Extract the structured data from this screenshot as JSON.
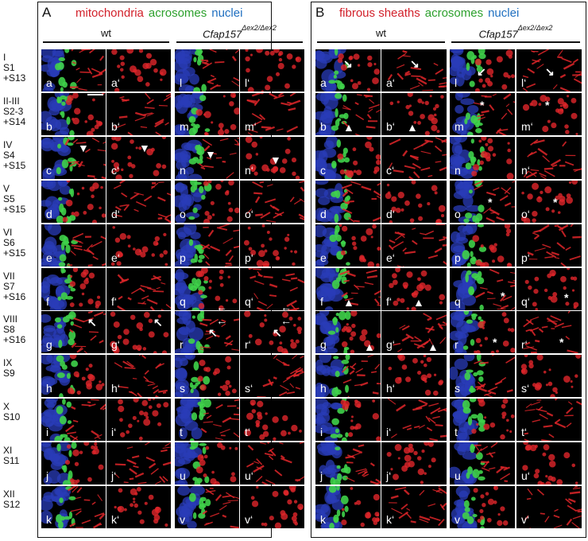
{
  "stages": [
    "I\nS1\n+S13",
    "II-III\nS2-3\n+S14",
    "IV\nS4\n+S15",
    "V\nS5\n+S15",
    "VI\nS6\n+S15",
    "VII\nS7\n+S16",
    "VIII\nS8\n+S16",
    "IX\nS9",
    "X\nS10",
    "XI\nS11",
    "XII\nS12"
  ],
  "panels": [
    {
      "letter": "A",
      "legend": [
        {
          "text": "mitochondria",
          "color": "#d2202a"
        },
        {
          "text": "acrosomes",
          "color": "#2ca02c"
        },
        {
          "text": "nuclei",
          "color": "#1f6fc0"
        }
      ],
      "genotypes": [
        {
          "label": "wt",
          "sup": ""
        },
        {
          "label": "Cfap157",
          "sup": "Δex2/Δex2"
        }
      ],
      "labels_wt": [
        "a",
        "b",
        "c",
        "d",
        "e",
        "f",
        "g",
        "h",
        "i",
        "j",
        "k"
      ],
      "labels_wt_prime": [
        "a‘",
        "b‘",
        "c‘",
        "d‘",
        "e‘",
        "f‘",
        "g‘",
        "h‘",
        "i‘",
        "j‘",
        "k‘"
      ],
      "labels_ko": [
        "l",
        "m",
        "n",
        "o",
        "p",
        "q",
        "r",
        "s",
        "t",
        "u",
        "v"
      ],
      "labels_ko_prime": [
        "l‘",
        "m‘",
        "n‘",
        "o‘",
        "p‘",
        "q‘",
        "r‘",
        "s‘",
        "t‘",
        "u‘",
        "v‘"
      ]
    },
    {
      "letter": "B",
      "legend": [
        {
          "text": "fibrous sheaths",
          "color": "#d2202a"
        },
        {
          "text": "acrosomes",
          "color": "#2ca02c"
        },
        {
          "text": "nuclei",
          "color": "#1f6fc0"
        }
      ],
      "genotypes": [
        {
          "label": "wt",
          "sup": ""
        },
        {
          "label": "Cfap157",
          "sup": "Δex2/Δex2"
        }
      ],
      "labels_wt": [
        "a",
        "b",
        "c",
        "d",
        "e",
        "f",
        "g",
        "h",
        "i",
        "j",
        "k"
      ],
      "labels_wt_prime": [
        "a‘",
        "b‘",
        "c‘",
        "d‘",
        "e‘",
        "f‘",
        "g‘",
        "h‘",
        "i‘",
        "j‘",
        "k‘"
      ],
      "labels_ko": [
        "l",
        "m",
        "n",
        "o",
        "p",
        "q",
        "r",
        "s",
        "t",
        "u",
        "v"
      ],
      "labels_ko_prime": [
        "l‘",
        "m‘",
        "n‘",
        "o‘",
        "p‘",
        "q‘",
        "r‘",
        "s‘",
        "t‘",
        "u‘",
        "v‘"
      ]
    }
  ],
  "colors": {
    "red": "#e0262a",
    "green": "#3fd24a",
    "blue": "#2a3cb8",
    "background": "#000000"
  }
}
